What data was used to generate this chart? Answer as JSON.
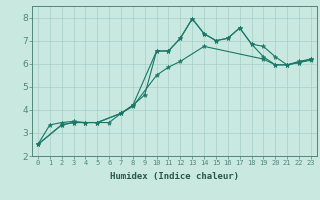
{
  "xlabel": "Humidex (Indice chaleur)",
  "bg_color": "#c8e8e0",
  "grid_color": "#a0c8c0",
  "line_color": "#1a7868",
  "xlim": [
    -0.5,
    23.5
  ],
  "ylim": [
    2,
    8.5
  ],
  "xticks": [
    0,
    1,
    2,
    3,
    4,
    5,
    6,
    7,
    8,
    9,
    10,
    11,
    12,
    13,
    14,
    15,
    16,
    17,
    18,
    19,
    20,
    21,
    22,
    23
  ],
  "yticks": [
    2,
    3,
    4,
    5,
    6,
    7,
    8
  ],
  "series": [
    {
      "x": [
        0,
        1,
        2,
        3,
        4,
        5,
        6,
        7,
        8,
        9,
        10,
        11,
        12,
        13,
        14,
        15,
        16,
        17,
        18,
        19,
        20,
        21,
        22,
        23
      ],
      "y": [
        2.5,
        3.35,
        3.45,
        3.5,
        3.45,
        3.45,
        3.45,
        3.85,
        4.2,
        4.65,
        6.55,
        6.55,
        7.1,
        7.95,
        7.3,
        7.0,
        7.1,
        7.55,
        6.85,
        6.3,
        5.95,
        5.95,
        6.1,
        6.2
      ]
    },
    {
      "x": [
        0,
        2,
        3,
        4,
        5,
        7,
        8,
        10,
        11,
        12,
        13,
        14,
        15,
        16,
        17,
        18,
        19,
        20,
        21,
        22,
        23
      ],
      "y": [
        2.5,
        3.35,
        3.45,
        3.45,
        3.45,
        3.85,
        4.2,
        6.55,
        6.55,
        7.1,
        7.95,
        7.3,
        7.0,
        7.1,
        7.55,
        6.85,
        6.75,
        6.3,
        5.95,
        6.05,
        6.2
      ]
    },
    {
      "x": [
        0,
        2,
        3,
        4,
        5,
        7,
        8,
        10,
        11,
        12,
        14,
        19,
        20,
        21,
        22,
        23
      ],
      "y": [
        2.5,
        3.35,
        3.45,
        3.45,
        3.45,
        3.85,
        4.15,
        5.5,
        5.85,
        6.1,
        6.75,
        6.2,
        5.95,
        5.95,
        6.05,
        6.15
      ]
    }
  ]
}
